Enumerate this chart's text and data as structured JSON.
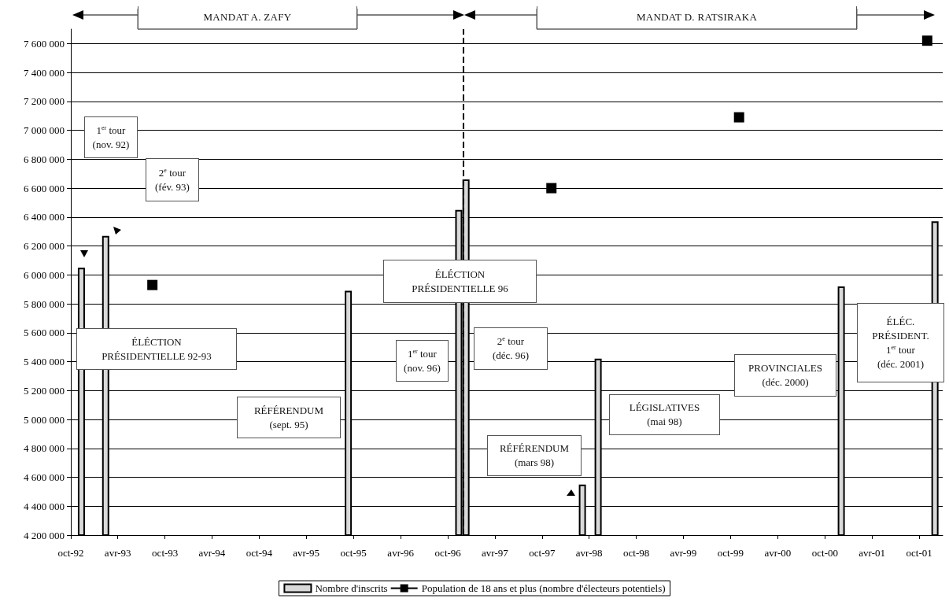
{
  "chart_data": {
    "type": "bar",
    "series": [
      {
        "name": "Nombre d'inscrits",
        "color": "#d9d9d9",
        "x": [
          "1992-11-11",
          "1993-02-13",
          "1995-09-11",
          "1996-11-12",
          "1996-12-10",
          "1998-03-06",
          "1998-05-06",
          "2000-12-03",
          "2001-12-01"
        ],
        "values": [
          6050000,
          6270000,
          5890000,
          6450000,
          6660000,
          4550000,
          5420000,
          5920000,
          6370000
        ]
      },
      {
        "name": "Population de 18 ans et plus (nombre d'électeurs potentiels)",
        "type": "scatter",
        "marker": "square",
        "color": "#000000",
        "x": [
          "1993-08-13",
          "1997-11-06",
          "1999-11-03",
          "2001-11-01"
        ],
        "values": [
          5930000,
          6600000,
          7090000,
          7620000
        ]
      }
    ],
    "xlim": [
      "1992-10-01",
      "2001-12-31"
    ],
    "xticks": [
      {
        "value": "1992-10-01",
        "label": "oct-92"
      },
      {
        "value": "1993-04-01",
        "label": "avr-93"
      },
      {
        "value": "1993-10-01",
        "label": "oct-93"
      },
      {
        "value": "1994-04-01",
        "label": "avr-94"
      },
      {
        "value": "1994-10-01",
        "label": "oct-94"
      },
      {
        "value": "1995-04-01",
        "label": "avr-95"
      },
      {
        "value": "1995-10-01",
        "label": "oct-95"
      },
      {
        "value": "1996-04-01",
        "label": "avr-96"
      },
      {
        "value": "1996-10-01",
        "label": "oct-96"
      },
      {
        "value": "1997-04-01",
        "label": "avr-97"
      },
      {
        "value": "1997-10-01",
        "label": "oct-97"
      },
      {
        "value": "1998-04-01",
        "label": "avr-98"
      },
      {
        "value": "1998-10-01",
        "label": "oct-98"
      },
      {
        "value": "1999-04-01",
        "label": "avr-99"
      },
      {
        "value": "1999-10-01",
        "label": "oct-99"
      },
      {
        "value": "2000-04-01",
        "label": "avr-00"
      },
      {
        "value": "2000-10-01",
        "label": "oct-00"
      },
      {
        "value": "2001-04-01",
        "label": "avr-01"
      },
      {
        "value": "2001-10-01",
        "label": "oct-01"
      }
    ],
    "ylim": [
      4200000,
      7700000
    ],
    "yticks": [
      {
        "value": 4200000,
        "label": "4 200 000"
      },
      {
        "value": 4400000,
        "label": "4 400 000"
      },
      {
        "value": 4600000,
        "label": "4 600 000"
      },
      {
        "value": 4800000,
        "label": "4 800 000"
      },
      {
        "value": 5000000,
        "label": "5 000 000"
      },
      {
        "value": 5200000,
        "label": "5 200 000"
      },
      {
        "value": 5400000,
        "label": "5 400 000"
      },
      {
        "value": 5600000,
        "label": "5 600 000"
      },
      {
        "value": 5800000,
        "label": "5 800 000"
      },
      {
        "value": 6000000,
        "label": "6 000 000"
      },
      {
        "value": 6200000,
        "label": "6 200 000"
      },
      {
        "value": 6400000,
        "label": "6 400 000"
      },
      {
        "value": 6600000,
        "label": "6 600 000"
      },
      {
        "value": 6800000,
        "label": "6 800 000"
      },
      {
        "value": 7000000,
        "label": "7 000 000"
      },
      {
        "value": 7200000,
        "label": "7 200 000"
      },
      {
        "value": 7400000,
        "label": "7 400 000"
      },
      {
        "value": 7600000,
        "label": "7 600 000"
      }
    ],
    "ref_lines": [
      {
        "axis": "x",
        "value": "1996-12-01",
        "line_style": "dashed",
        "color": "#000000"
      }
    ],
    "annotations": [
      "MANDAT  A. ZAFY",
      "MANDAT  D. RATSIRAKA",
      "1$^{er}$ tour\n(nov. 92)",
      "2$^{e}$ tour\n(fév. 93)",
      "ÉLÉCTION\nPRÉSIDENTIELLE 92-93",
      "RÉFÉRENDUM\n(sept. 95)",
      "ÉLÉCTION\nPRÉSIDENTIELLE 96",
      "1$^{er}$ tour\n(nov. 96)",
      "2$^{e}$ tour\n(déc. 96)",
      "RÉFÉRENDUM\n(mars 98)",
      "LÉGISLATIVES\n(mai 98)",
      "PROVINCIALES\n(déc. 2000)",
      "ÉLÉC.\nPRÉSIDENT.\n1$^{er}$ tour\n(déc. 2001)"
    ],
    "grid": "y",
    "legend": "bottom"
  }
}
